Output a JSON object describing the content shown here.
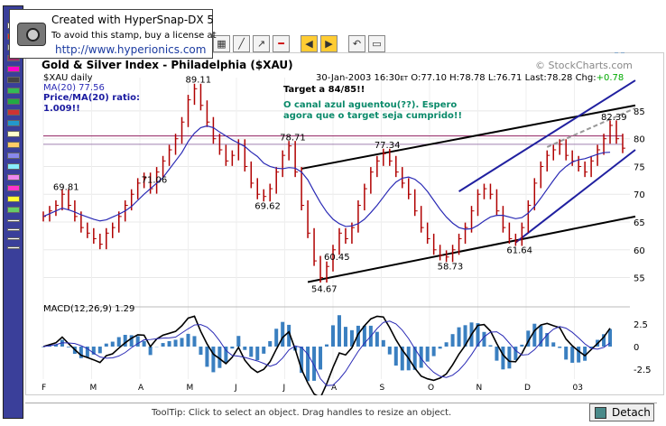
{
  "stamp": {
    "line1": "Created with HyperSnap-DX 5",
    "line2": "To avoid this stamp, buy a license at",
    "line3": "http://www.hyperionics.com"
  },
  "toolbar_icons": [
    "grid-icon",
    "line-tool-icon",
    "trend-line-icon",
    "arrow-left-icon",
    "arrow-right-icon",
    "undo-icon",
    "window-icon"
  ],
  "chart": {
    "title": "Gold & Silver Index - Philadelphia ($XAU)",
    "credit": "© StockCharts.com",
    "symbol_line": "$XAU daily",
    "ma_line": "MA(20) 77.56",
    "ratio_line1": "Price/MA(20) ratio:",
    "ratio_line2": "1.009!!",
    "quote_date": "30-Jan-2003 16:30",
    "quote_et": "ET",
    "quote_values": "O:77.10 H:78.78 L:76.71 Last:78.28 Chg:",
    "quote_change": "+0.78",
    "note_target": "Target a 84/85!!",
    "note_pt1": "O canal azul aguentou(??). Espero",
    "note_pt2": "agora que o target seja cumprido!!",
    "price_labels": [
      "89.11",
      "78.71",
      "77.34",
      "69.81",
      "69.62",
      "71.06",
      "60.45",
      "58.73",
      "61.64",
      "54.67",
      "82.39"
    ],
    "macd_label": "MACD(12,26,9)  1.29",
    "colors": {
      "price_bar": "#b00000",
      "ma": "#2a2ab5",
      "channel": "#000000",
      "blue_channel": "#2020a0",
      "macd_hist": "#3a7fc0",
      "note": "#0a8a6a",
      "ratio": "#1a1aa0"
    }
  },
  "chart_data": {
    "type": "line",
    "title": "Gold & Silver Index - Philadelphia ($XAU)",
    "x_tick_labels": [
      "F",
      "M",
      "A",
      "M",
      "J",
      "J",
      "A",
      "S",
      "O",
      "N",
      "D",
      "03"
    ],
    "y_tick_labels": [
      "85",
      "80",
      "75",
      "70",
      "65",
      "60",
      "55"
    ],
    "y_range": [
      52,
      91
    ],
    "annotated_prices": [
      {
        "label": "69.81",
        "value": 69.81
      },
      {
        "label": "60.45",
        "value": 60.45
      },
      {
        "label": "89.11",
        "value": 89.11
      },
      {
        "label": "78.71",
        "value": 78.71
      },
      {
        "label": "69.62",
        "value": 69.62
      },
      {
        "label": "54.67",
        "value": 54.67
      },
      {
        "label": "77.34",
        "value": 77.34
      },
      {
        "label": "58.73",
        "value": 58.73
      },
      {
        "label": "71.06",
        "value": 71.06
      },
      {
        "label": "61.64",
        "value": 61.64
      },
      {
        "label": "82.39",
        "value": 82.39
      }
    ],
    "series": [
      {
        "name": "$XAU daily",
        "values": [
          66,
          67,
          68,
          70,
          68,
          66,
          64,
          63,
          62,
          61,
          63,
          64,
          66,
          68,
          70,
          72,
          73,
          71,
          74,
          76,
          78,
          80,
          83,
          87,
          89,
          86,
          83,
          80,
          78,
          76,
          77,
          79,
          75,
          72,
          70,
          69.6,
          71,
          74,
          77,
          78.7,
          74,
          68,
          63,
          58,
          55,
          57,
          60,
          63,
          62,
          64,
          68,
          71,
          74,
          76,
          77.3,
          76,
          74,
          72,
          70,
          67,
          64,
          62,
          60,
          59,
          58.7,
          60,
          62,
          64,
          67,
          70,
          71,
          70,
          67,
          64,
          62,
          61.6,
          64,
          68,
          72,
          75,
          77,
          78,
          79,
          77,
          76,
          75,
          74,
          76,
          78,
          80,
          82.4,
          80,
          78.3
        ]
      },
      {
        "name": "MA(20)",
        "values": [
          66,
          66.5,
          67,
          67.5,
          67.2,
          66.8,
          66.3,
          65.9,
          65.5,
          65.2,
          65.4,
          65.9,
          66.4,
          67,
          67.8,
          68.9,
          70,
          71,
          72,
          73,
          74.5,
          76,
          77.5,
          79.5,
          81,
          82,
          82.3,
          82,
          81.2,
          80.5,
          79.8,
          79.2,
          78.6,
          77.6,
          76.8,
          75.6,
          75,
          74.7,
          74.6,
          74.8,
          74.7,
          74,
          72.6,
          70.5,
          68.5,
          66.8,
          65.5,
          64.7,
          64.2,
          64.3,
          64.7,
          65.5,
          66.7,
          68,
          69.5,
          71,
          72.2,
          72.9,
          73.1,
          72.7,
          71.8,
          70.5,
          68.9,
          67.3,
          65.9,
          64.8,
          64,
          63.7,
          63.8,
          64.4,
          65.2,
          65.9,
          66.2,
          66.2,
          65.9,
          65.6,
          65.8,
          66.6,
          67.8,
          69.3,
          70.9,
          72.5,
          74,
          75,
          75.8,
          76.2,
          76.4,
          76.8,
          77.2,
          77.5,
          77.56
        ]
      }
    ],
    "macd": {
      "label": "MACD(12,26,9)",
      "last": 1.29,
      "y_tick_labels": [
        "2.5",
        "0",
        "-2.5"
      ],
      "y_range": [
        -3.6,
        3.6
      ]
    }
  },
  "status": {
    "tooltip": "ToolTip: Click to select an object. Drag handles to resize an object.",
    "detach_label": "Detach"
  }
}
